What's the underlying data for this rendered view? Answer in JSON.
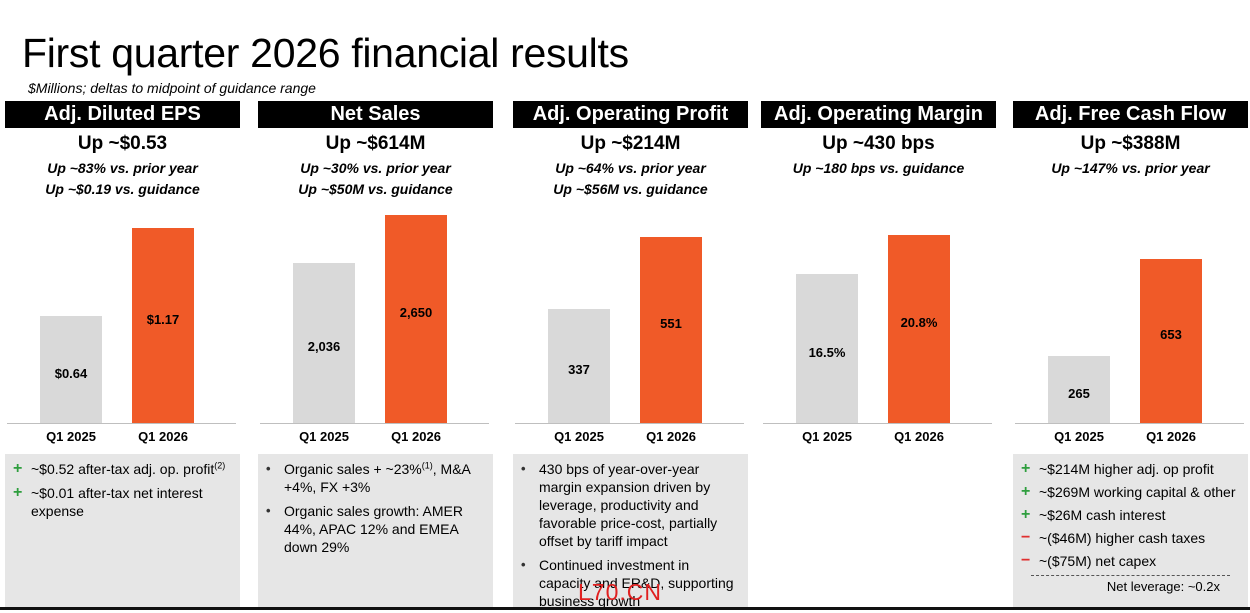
{
  "title": "First quarter 2026 financial results",
  "subtitle": "$Millions; deltas to midpoint of guidance range",
  "colors": {
    "prior": "#d9d9d9",
    "current": "#f05a28",
    "plus": "#2e9e3e",
    "minus": "#e03030"
  },
  "watermark": "L70.CN",
  "chart_data": [
    {
      "type": "bar",
      "title": "Adj. Diluted EPS",
      "headline": "Up ~$0.53",
      "deltas": [
        "Up ~83% vs. prior year",
        "Up ~$0.19 vs. guidance"
      ],
      "categories": [
        "Q1 2025",
        "Q1 2026"
      ],
      "values": [
        0.64,
        1.17
      ],
      "labels": [
        "$0.64",
        "$1.17"
      ],
      "notes": [
        {
          "mark": "+",
          "text": "~$0.52 after-tax adj. op. profit",
          "sup": "(2)"
        },
        {
          "mark": "+",
          "text": "~$0.01 after-tax net interest expense"
        }
      ]
    },
    {
      "type": "bar",
      "title": "Net Sales",
      "headline": "Up ~$614M",
      "deltas": [
        "Up ~30% vs. prior year",
        "Up ~$50M vs. guidance"
      ],
      "categories": [
        "Q1 2025",
        "Q1 2026"
      ],
      "values": [
        2036,
        2650
      ],
      "labels": [
        "2,036",
        "2,650"
      ],
      "notes": [
        {
          "mark": "•",
          "text": "Organic sales + ~23%",
          "sup": "(1)",
          "after": ", M&A +4%, FX +3%"
        },
        {
          "mark": "•",
          "text": "Organic sales growth: AMER 44%, APAC 12% and EMEA down 29%"
        }
      ]
    },
    {
      "type": "bar",
      "title": "Adj. Operating Profit",
      "headline": "Up ~$214M",
      "deltas": [
        "Up ~64% vs. prior year",
        "Up ~$56M vs. guidance"
      ],
      "categories": [
        "Q1 2025",
        "Q1 2026"
      ],
      "values": [
        337,
        551
      ],
      "labels": [
        "337",
        "551"
      ],
      "notes": [
        {
          "mark": "•",
          "text": "430 bps of year-over-year margin expansion driven by leverage, productivity and favorable price-cost, partially offset by tariff impact"
        },
        {
          "mark": "•",
          "text": "Continued investment in capacity and ER&D, supporting business growth"
        }
      ]
    },
    {
      "type": "bar",
      "title": "Adj. Operating Margin",
      "headline": "Up ~430 bps",
      "deltas": [
        "Up ~180 bps vs. guidance"
      ],
      "categories": [
        "Q1 2025",
        "Q1 2026"
      ],
      "values": [
        16.5,
        20.8
      ],
      "labels": [
        "16.5%",
        "20.8%"
      ],
      "notes": []
    },
    {
      "type": "bar",
      "title": "Adj. Free Cash Flow",
      "headline": "Up ~$388M",
      "deltas": [
        "Up ~147% vs. prior year"
      ],
      "categories": [
        "Q1 2025",
        "Q1 2026"
      ],
      "values": [
        265,
        653
      ],
      "labels": [
        "265",
        "653"
      ],
      "notes": [
        {
          "mark": "+",
          "text": "~$214M higher adj. op profit"
        },
        {
          "mark": "+",
          "text": "~$269M working capital & other"
        },
        {
          "mark": "+",
          "text": "~$26M cash interest"
        },
        {
          "mark": "−",
          "text": "~($46M) higher cash taxes"
        },
        {
          "mark": "−",
          "text": "~($75M) net capex"
        }
      ],
      "leverage": "Net leverage:  ~0.2x"
    }
  ]
}
